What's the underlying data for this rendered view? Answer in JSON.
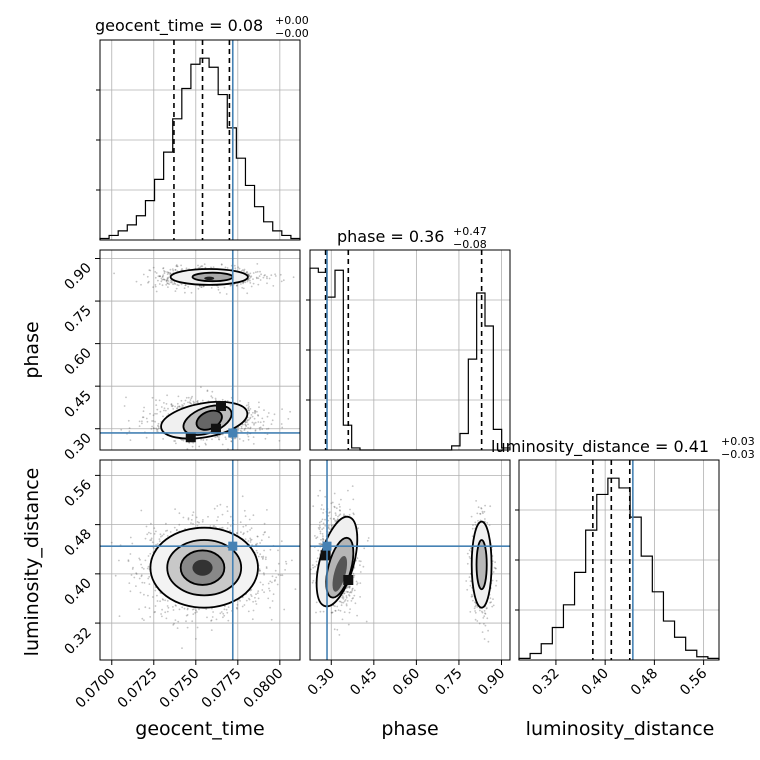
{
  "colors": {
    "truth": "#4682b4",
    "hist": "#000000",
    "grid": "#b0b0b0",
    "points": "#555555"
  },
  "params": [
    "geocent_time",
    "phase",
    "luminosity_distance"
  ],
  "titles": [
    {
      "label": "geocent_time = 0.08",
      "sup": "+0.00",
      "sub": "−0.00"
    },
    {
      "label": "phase = 0.36",
      "sup": "+0.47",
      "sub": "−0.08"
    },
    {
      "label": "luminosity_distance = 0.41",
      "sup": "+0.03",
      "sub": "−0.03"
    }
  ],
  "axis_labels": {
    "geocent_time": "geocent_time",
    "phase": "phase",
    "luminosity_distance": "luminosity_distance"
  },
  "chart_data": {
    "type": "corner",
    "truths": {
      "geocent_time": 0.0772,
      "phase": 0.285,
      "luminosity_distance": 0.445
    },
    "ranges": {
      "geocent_time": [
        0.0693,
        0.0812
      ],
      "phase": [
        0.225,
        0.93
      ],
      "luminosity_distance": [
        0.26,
        0.585
      ]
    },
    "ticks": {
      "geocent_time": [
        "0.0700",
        "0.0725",
        "0.0750",
        "0.0775",
        "0.0800"
      ],
      "phase": [
        "0.30",
        "0.45",
        "0.60",
        "0.75",
        "0.90"
      ],
      "luminosity_distance": [
        "0.32",
        "0.40",
        "0.48",
        "0.56"
      ]
    },
    "quantile_lines": {
      "geocent_time": [
        0.0737,
        0.0754,
        0.077
      ],
      "phase": [
        0.28,
        0.36,
        0.83
      ],
      "luminosity_distance": [
        0.38,
        0.41,
        0.44
      ]
    },
    "histograms": {
      "geocent_time": [
        0.5,
        1.5,
        3,
        5,
        8,
        13,
        20,
        29,
        40,
        50,
        58,
        60,
        57,
        48,
        37,
        27,
        18,
        11,
        6,
        3,
        1.5,
        0.5
      ],
      "phase": [
        88,
        86,
        74,
        87,
        12,
        1,
        0,
        0,
        0,
        0,
        0,
        0,
        0,
        0,
        0,
        0,
        0,
        2,
        8,
        44,
        76,
        60,
        10,
        1
      ],
      "luminosity_distance": [
        0.5,
        2,
        5,
        10,
        17,
        27,
        40,
        51,
        56,
        53,
        44,
        32,
        21,
        12,
        7,
        3,
        1,
        0.5
      ]
    },
    "ylabel_rows": [
      "phase",
      "luminosity_distance"
    ]
  }
}
